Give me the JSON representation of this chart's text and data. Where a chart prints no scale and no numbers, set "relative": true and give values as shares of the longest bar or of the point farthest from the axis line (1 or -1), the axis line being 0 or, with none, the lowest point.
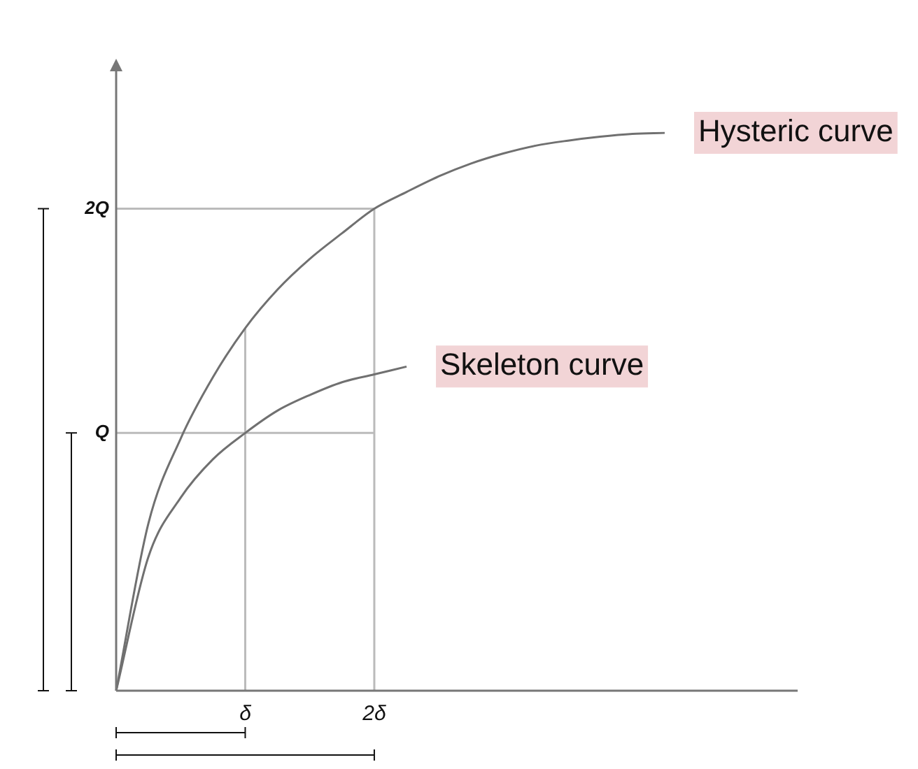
{
  "chart_data": {
    "type": "line",
    "relative": true,
    "legend": false,
    "categories": [
      null,
      null,
      null,
      null,
      "δ",
      null,
      null,
      null,
      "2δ",
      null,
      null,
      null,
      null,
      null,
      null,
      null,
      null,
      null
    ],
    "ref_lines": [
      {
        "axis": "y",
        "value": 0.462,
        "label": "Q",
        "color": "#bbbbbb"
      },
      {
        "axis": "y",
        "value": 0.864,
        "label": "2Q",
        "color": "#bbbbbb"
      },
      {
        "axis": "x",
        "value": "δ",
        "color": "#bbbbbb"
      },
      {
        "axis": "x",
        "value": "2δ",
        "color": "#bbbbbb"
      }
    ],
    "series": [
      {
        "name": "Hysteric curve",
        "color": "#707070",
        "values": [
          0,
          0.3,
          0.452,
          0.562,
          0.65,
          0.719,
          0.774,
          0.82,
          0.864,
          0.894,
          0.922,
          0.945,
          0.963,
          0.977,
          0.986,
          0.993,
          0.998,
          1
        ]
      },
      {
        "name": "Skeleton curve",
        "color": "#707070",
        "values": [
          0,
          0.24,
          0.346,
          0.415,
          0.462,
          0.502,
          0.53,
          0.553,
          0.567,
          0.581,
          null,
          null,
          null,
          null,
          null,
          null,
          null,
          null
        ]
      }
    ]
  }
}
